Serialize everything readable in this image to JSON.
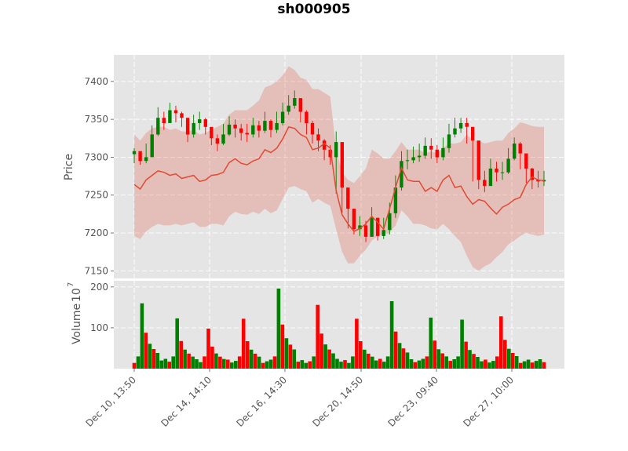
{
  "chart_data": {
    "type": "candlestick",
    "title": "sh000905",
    "price_panel": {
      "ylabel": "Price",
      "ylim": [
        7140,
        7435
      ],
      "yticks": [
        7150,
        7200,
        7250,
        7300,
        7350,
        7400
      ],
      "series": [
        {
          "kind": "candles",
          "up_color": "#008000",
          "down_color": "#ff0000",
          "close": [
            7308,
            7295,
            7300,
            7330,
            7352,
            7345,
            7362,
            7358,
            7352,
            7330,
            7345,
            7350,
            7340,
            7325,
            7318,
            7330,
            7343,
            7338,
            7332,
            7330,
            7342,
            7335,
            7348,
            7336,
            7345,
            7360,
            7368,
            7378,
            7360,
            7345,
            7330,
            7322,
            7310,
            7300,
            7320,
            7260,
            7232,
            7205,
            7210,
            7195,
            7220,
            7196,
            7204,
            7226,
            7260,
            7295,
            7296,
            7300,
            7302,
            7315,
            7310,
            7300,
            7312,
            7330,
            7338,
            7345,
            7340,
            7322,
            7270,
            7262,
            7285,
            7280,
            7280,
            7298,
            7318,
            7305,
            7285,
            7270,
            7268,
            7270
          ],
          "high": [
            7312,
            7306,
            7318,
            7342,
            7366,
            7360,
            7372,
            7368,
            7360,
            7346,
            7356,
            7360,
            7352,
            7338,
            7330,
            7344,
            7354,
            7350,
            7344,
            7344,
            7352,
            7348,
            7360,
            7350,
            7360,
            7372,
            7382,
            7388,
            7376,
            7362,
            7348,
            7338,
            7324,
            7316,
            7334,
            7290,
            7252,
            7226,
            7222,
            7216,
            7234,
            7220,
            7220,
            7240,
            7276,
            7308,
            7310,
            7314,
            7318,
            7326,
            7325,
            7316,
            7326,
            7344,
            7352,
            7352,
            7352,
            7340,
            7296,
            7282,
            7298,
            7294,
            7294,
            7312,
            7326,
            7320,
            7300,
            7286,
            7282,
            7282
          ],
          "low": [
            7292,
            7290,
            7292,
            7308,
            7328,
            7336,
            7345,
            7346,
            7340,
            7320,
            7326,
            7336,
            7330,
            7316,
            7308,
            7316,
            7328,
            7326,
            7322,
            7320,
            7326,
            7326,
            7332,
            7326,
            7332,
            7342,
            7356,
            7364,
            7346,
            7330,
            7318,
            7308,
            7296,
            7290,
            7252,
            7226,
            7206,
            7198,
            7196,
            7188,
            7196,
            7190,
            7192,
            7198,
            7220,
            7256,
            7284,
            7292,
            7294,
            7298,
            7298,
            7292,
            7296,
            7306,
            7326,
            7332,
            7318,
            7268,
            7258,
            7254,
            7262,
            7268,
            7270,
            7278,
            7296,
            7284,
            7266,
            7258,
            7260,
            7262
          ]
        },
        {
          "kind": "line",
          "color": "#e24a33",
          "values": [
            7264,
            7258,
            7270,
            7276,
            7282,
            7280,
            7276,
            7278,
            7272,
            7274,
            7276,
            7268,
            7270,
            7276,
            7277,
            7280,
            7293,
            7298,
            7292,
            7290,
            7295,
            7298,
            7310,
            7306,
            7312,
            7324,
            7340,
            7338,
            7330,
            7326,
            7310,
            7312,
            7318,
            7312,
            7256,
            7224,
            7212,
            7202,
            7206,
            7212,
            7222,
            7214,
            7205,
            7232,
            7260,
            7286,
            7270,
            7268,
            7268,
            7255,
            7260,
            7255,
            7270,
            7276,
            7260,
            7262,
            7248,
            7238,
            7244,
            7242,
            7233,
            7225,
            7234,
            7238,
            7244,
            7247,
            7264,
            7274,
            7270,
            7269
          ]
        },
        {
          "kind": "band",
          "color": "#e24a33",
          "opacity": 0.25,
          "upper": [
            7330,
            7322,
            7332,
            7338,
            7340,
            7340,
            7336,
            7338,
            7334,
            7334,
            7336,
            7330,
            7332,
            7336,
            7340,
            7344,
            7356,
            7362,
            7362,
            7362,
            7368,
            7375,
            7392,
            7395,
            7400,
            7408,
            7420,
            7415,
            7405,
            7402,
            7390,
            7390,
            7385,
            7380,
            7310,
            7280,
            7270,
            7266,
            7275,
            7285,
            7310,
            7305,
            7298,
            7298,
            7308,
            7320,
            7310,
            7310,
            7310,
            7305,
            7308,
            7305,
            7312,
            7318,
            7318,
            7320,
            7330,
            7322,
            7322,
            7318,
            7320,
            7322,
            7322,
            7332,
            7338,
            7346,
            7344,
            7341,
            7340,
            7340
          ],
          "lower": [
            7196,
            7192,
            7202,
            7208,
            7212,
            7210,
            7210,
            7212,
            7210,
            7212,
            7214,
            7208,
            7208,
            7212,
            7212,
            7210,
            7222,
            7228,
            7225,
            7224,
            7228,
            7225,
            7232,
            7226,
            7230,
            7245,
            7260,
            7262,
            7258,
            7255,
            7240,
            7245,
            7240,
            7236,
            7205,
            7175,
            7160,
            7160,
            7170,
            7178,
            7190,
            7196,
            7198,
            7200,
            7210,
            7230,
            7222,
            7212,
            7212,
            7210,
            7206,
            7205,
            7212,
            7205,
            7196,
            7188,
            7170,
            7155,
            7150,
            7156,
            7160,
            7168,
            7175,
            7185,
            7190,
            7196,
            7200,
            7198,
            7196,
            7198
          ]
        }
      ]
    },
    "volume_panel": {
      "ylabel": "Volume  10^7",
      "ylabel_main": "Volume",
      "ylabel_exp": "10",
      "ylabel_exp_sup": "7",
      "ylim": [
        0,
        215
      ],
      "yticks": [
        100,
        200
      ],
      "spikes": [
        {
          "i": 2,
          "h": 160,
          "c": "green"
        },
        {
          "i": 11,
          "h": 123,
          "c": "green"
        },
        {
          "i": 19,
          "h": 98,
          "c": "red"
        },
        {
          "i": 28,
          "h": 122,
          "c": "red"
        },
        {
          "i": 37,
          "h": 196,
          "c": "green"
        },
        {
          "i": 47,
          "h": 156,
          "c": "red"
        },
        {
          "i": 57,
          "h": 122,
          "c": "red"
        },
        {
          "i": 66,
          "h": 165,
          "c": "green"
        },
        {
          "i": 76,
          "h": 125,
          "c": "green"
        },
        {
          "i": 84,
          "h": 120,
          "c": "green"
        },
        {
          "i": 94,
          "h": 128,
          "c": "red"
        }
      ]
    },
    "x_tick_labels": [
      "Dec 10, 13:50",
      "Dec 14, 14:10",
      "Dec 16, 14:30",
      "Dec 20, 14:50",
      "Dec 23, 09:40",
      "Dec 27, 10:00"
    ],
    "grid": true,
    "background": "#e5e5e5"
  }
}
